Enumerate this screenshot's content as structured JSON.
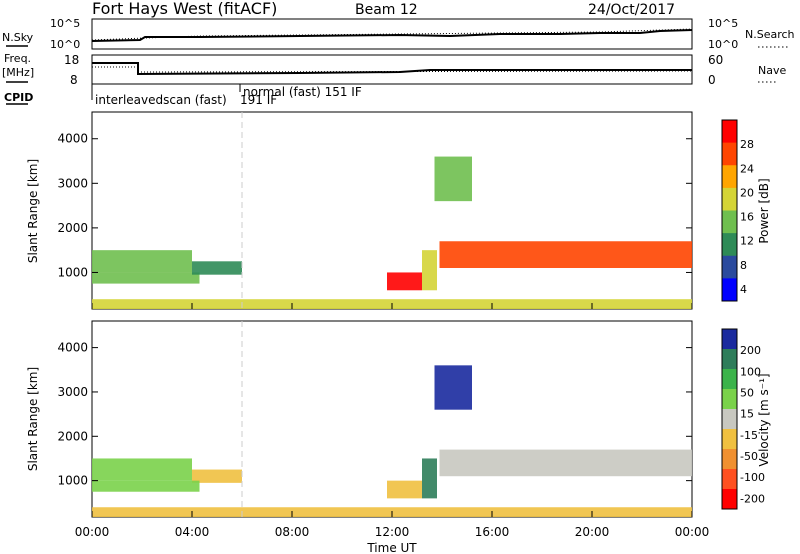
{
  "header": {
    "station": "Fort Hays West (fitACF)",
    "beam": "Beam 12",
    "date": "24/Oct/2017"
  },
  "nsky_panel": {
    "left_label": "N.Sky",
    "right_label": "N.Search",
    "left_ticks": [
      "10^5",
      "10^0"
    ],
    "right_ticks": [
      "10^5",
      "10^0"
    ]
  },
  "freq_panel": {
    "left_label_1": "Freq.",
    "left_label_2": "[MHz]",
    "right_label": "Nave",
    "left_ticks": [
      "18",
      "8"
    ],
    "right_ticks": [
      "60",
      "0"
    ],
    "cpid_label": "CPID",
    "cpid_segments": [
      {
        "text": "interleavedscan (fast)",
        "start_hour": 0
      },
      {
        "text": "191 IF",
        "start_hour": 6
      },
      {
        "text": "normal (fast)  151 IF",
        "start_hour": 6
      }
    ]
  },
  "power_panel": {
    "ylabel": "Slant Range [km]",
    "yticks": [
      "4000",
      "3000",
      "2000",
      "1000"
    ],
    "colorbar_label": "Power [dB]",
    "colorbar_ticks": [
      "28",
      "24",
      "20",
      "16",
      "12",
      "8",
      "4"
    ],
    "colors": [
      "#0000ff",
      "#2a4a9e",
      "#2e8b57",
      "#6fbf4f",
      "#d4d436",
      "#ffa500",
      "#ff4500",
      "#ff0000"
    ]
  },
  "velocity_panel": {
    "ylabel": "Slant Range [km]",
    "yticks": [
      "4000",
      "3000",
      "2000",
      "1000"
    ],
    "colorbar_label": "Velocity [m s⁻¹]",
    "colorbar_ticks": [
      "200",
      "100",
      "50",
      "15",
      "-15",
      "-50",
      "-100",
      "-200"
    ],
    "colors": [
      "#1a2a9e",
      "#2e7d5a",
      "#3bb34a",
      "#7ad24a",
      "#c8c8c0",
      "#f0c040",
      "#f09030",
      "#ff5020",
      "#ff0000"
    ]
  },
  "xaxis": {
    "ticks": [
      "00:00",
      "04:00",
      "08:00",
      "12:00",
      "16:00",
      "20:00",
      "00:00"
    ],
    "label": "Time UT"
  },
  "chart_data": [
    {
      "type": "heatmap",
      "title": "Power",
      "x_range_hours": [
        0,
        24
      ],
      "ylim": [
        180,
        4600
      ],
      "colorbar_range": [
        0,
        32
      ],
      "regions": [
        {
          "t0": 0.0,
          "t1": 4.0,
          "r0": 1000,
          "r1": 1500,
          "value": 14
        },
        {
          "t0": 0.0,
          "t1": 4.3,
          "r0": 750,
          "r1": 1000,
          "value": 12
        },
        {
          "t0": 4.0,
          "t1": 6.0,
          "r0": 950,
          "r1": 1250,
          "value": 10
        },
        {
          "t0": 11.8,
          "t1": 13.2,
          "r0": 600,
          "r1": 1000,
          "value": 30
        },
        {
          "t0": 13.2,
          "t1": 13.8,
          "r0": 600,
          "r1": 1500,
          "value": 18
        },
        {
          "t0": 13.7,
          "t1": 15.2,
          "r0": 2600,
          "r1": 3600,
          "value": 14
        },
        {
          "t0": 13.9,
          "t1": 24.0,
          "r0": 1100,
          "r1": 1700,
          "value": 26
        },
        {
          "t0": 0.0,
          "t1": 24.0,
          "r0": 180,
          "r1": 400,
          "value": 18
        }
      ]
    },
    {
      "type": "heatmap",
      "title": "Velocity",
      "x_range_hours": [
        0,
        24
      ],
      "ylim": [
        180,
        4600
      ],
      "colorbar_range": [
        -200,
        200
      ],
      "regions": [
        {
          "t0": 0.0,
          "t1": 4.0,
          "r0": 1000,
          "r1": 1500,
          "value": 40
        },
        {
          "t0": 4.0,
          "t1": 6.0,
          "r0": 950,
          "r1": 1250,
          "value": -30
        },
        {
          "t0": 0.0,
          "t1": 4.3,
          "r0": 750,
          "r1": 1000,
          "value": 30
        },
        {
          "t0": 11.8,
          "t1": 13.2,
          "r0": 600,
          "r1": 1000,
          "value": -60
        },
        {
          "t0": 13.2,
          "t1": 13.8,
          "r0": 600,
          "r1": 1500,
          "value": 120
        },
        {
          "t0": 13.7,
          "t1": 15.2,
          "r0": 2600,
          "r1": 3600,
          "value": 200
        },
        {
          "t0": 13.9,
          "t1": 24.0,
          "r0": 1100,
          "r1": 1700,
          "value": 0
        },
        {
          "t0": 0.0,
          "t1": 24.0,
          "r0": 180,
          "r1": 400,
          "value": -40
        }
      ]
    }
  ]
}
